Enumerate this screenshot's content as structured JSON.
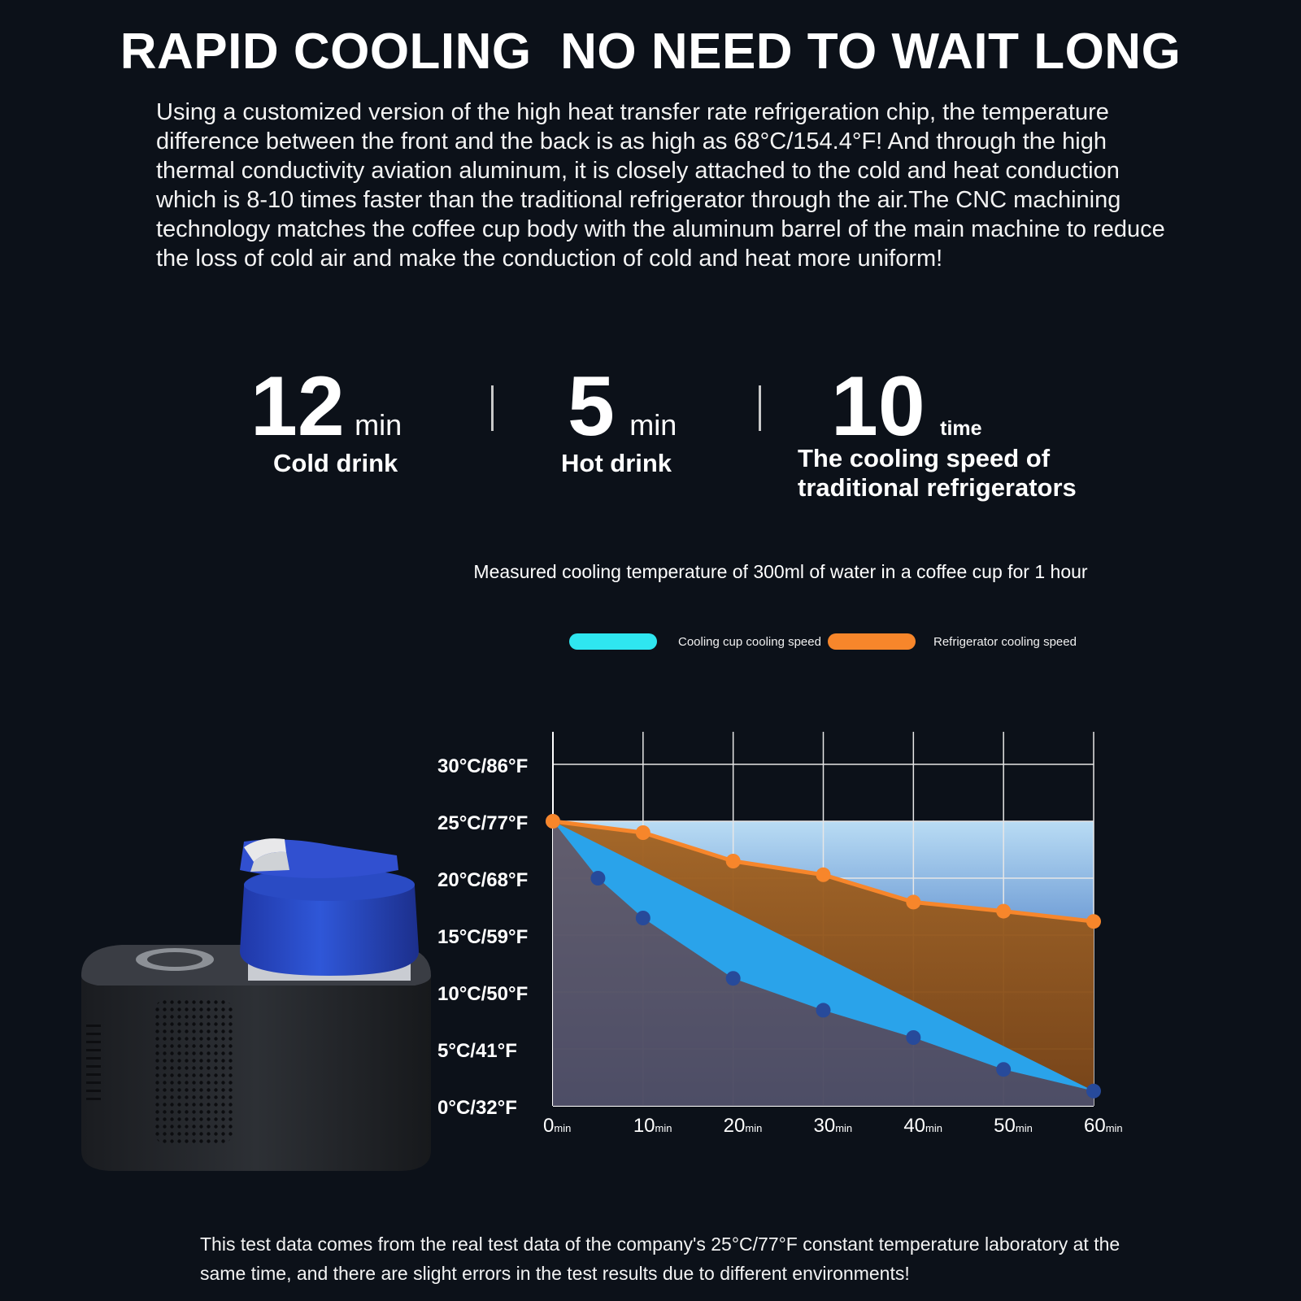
{
  "headline": "RAPID COOLING  NO NEED TO WAIT LONG",
  "intro": "Using a customized version of the high heat transfer rate refrigeration chip, the temperature difference between the front and the back is as high as 68°C/154.4°F! And through the high thermal conductivity aviation aluminum, it is closely attached to the cold and heat conduction which is 8-10 times faster than the traditional refrigerator through the air.The CNC machining technology matches the coffee cup body with the aluminum barrel of the main machine to reduce the loss of cold air and make the conduction of cold and heat more uniform!",
  "stats": [
    {
      "number": "12",
      "unit": "min",
      "label": "Cold drink"
    },
    {
      "number": "5",
      "unit": "min",
      "label": "Hot drink"
    },
    {
      "number": "10",
      "unit": "time",
      "label_line1": "The cooling speed of",
      "label_line2": "traditional refrigerators"
    }
  ],
  "colors": {
    "background": "#0c1119",
    "cooling_cup": "#2fe6f0",
    "refrigerator": "#f7862b"
  },
  "chart_data": {
    "type": "area",
    "title": "Measured cooling temperature of 300ml of water in a coffee cup for 1 hour",
    "legend_position": "top",
    "grid": true,
    "x": [
      0,
      5,
      10,
      20,
      30,
      40,
      50,
      60
    ],
    "x_ticks": [
      0,
      10,
      20,
      30,
      40,
      50,
      60
    ],
    "x_unit": "min",
    "y_ticks": [
      "0°C/32°F",
      "5°C/41°F",
      "10°C/50°F",
      "15°C/59°F",
      "20°C/68°F",
      "25°C/77°F",
      "30°C/86°F"
    ],
    "ylim": [
      0,
      30
    ],
    "series": [
      {
        "name": "Cooling cup cooling speed",
        "color": "#2fe6f0",
        "x": [
          0,
          5,
          10,
          20,
          30,
          40,
          50,
          60
        ],
        "values": [
          25,
          20,
          16.5,
          11.2,
          8.4,
          6.0,
          3.2,
          1.3
        ]
      },
      {
        "name": "Refrigerator cooling speed",
        "color": "#f7862b",
        "x": [
          0,
          10,
          20,
          30,
          40,
          50,
          60
        ],
        "values": [
          25,
          24,
          21.5,
          20.3,
          17.9,
          17.1,
          16.2
        ]
      }
    ]
  },
  "footnote": "This test data comes from the real test data of the company's 25°C/77°F constant temperature laboratory at the same time, and there are slight errors in the test results due to different environments!"
}
